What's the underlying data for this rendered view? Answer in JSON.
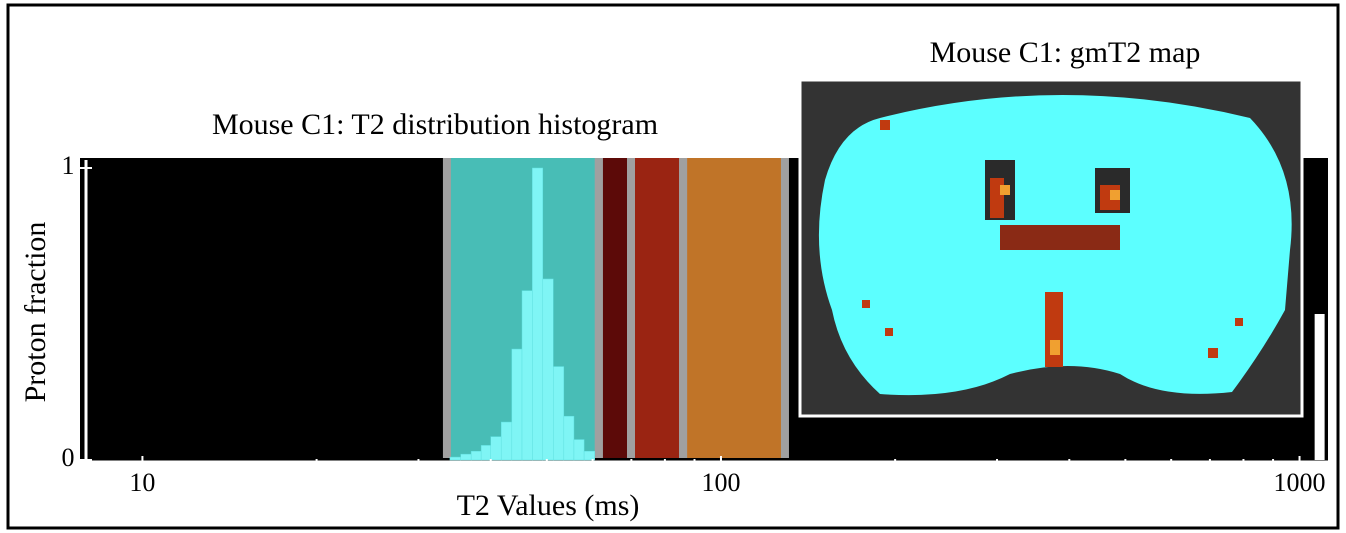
{
  "chart_data": {
    "type": "histogram",
    "title": "Mouse C1: T2 distribution histogram",
    "xlabel": "T2 Values (ms)",
    "ylabel": "Proton fraction",
    "xscale": "log",
    "xlim": [
      7.8,
      1120
    ],
    "xticks": [
      10,
      100,
      1000
    ],
    "minor_xticks": [
      20,
      30,
      40,
      50,
      60,
      70,
      80,
      90,
      200,
      300,
      400,
      500,
      600,
      700,
      800,
      900
    ],
    "ylim": [
      0,
      1
    ],
    "yticks": [
      0,
      1
    ],
    "bins": [
      34,
      35.5,
      37,
      38.5,
      40,
      41.7,
      43.5,
      45.3,
      47.2,
      49.2,
      51.3,
      53.5,
      55.7,
      58,
      60.5
    ],
    "values": [
      0.01,
      0.02,
      0.03,
      0.05,
      0.08,
      0.13,
      0.38,
      0.58,
      1.0,
      0.62,
      0.32,
      0.15,
      0.07,
      0.03
    ],
    "color": "#7ff5f5",
    "tail": {
      "bins": [
        1062,
        1105
      ],
      "values": [
        0.5
      ],
      "color": "#ffffff"
    },
    "ranges": [
      {
        "start": 33.6,
        "end": 61.5,
        "color": "#48bdb6"
      },
      {
        "start": 61.5,
        "end": 69.9,
        "color": "#5c0a08"
      },
      {
        "start": 69.9,
        "end": 86,
        "color": "#9a2412"
      },
      {
        "start": 86,
        "end": 129,
        "color": "#c07428"
      }
    ],
    "inset": {
      "title": "Mouse C1: gmT2 map"
    }
  }
}
